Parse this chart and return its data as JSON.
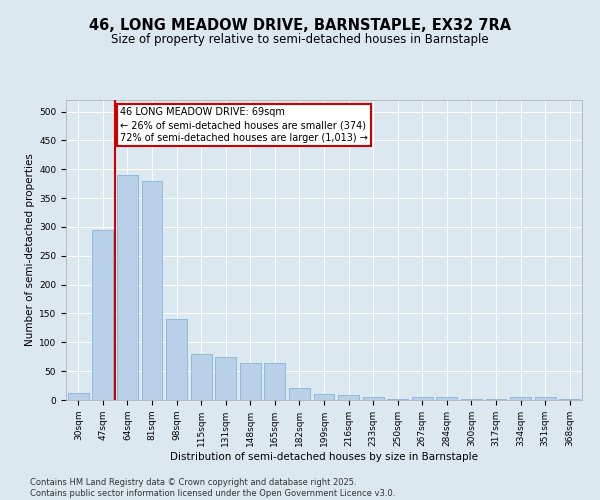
{
  "title1": "46, LONG MEADOW DRIVE, BARNSTAPLE, EX32 7RA",
  "title2": "Size of property relative to semi-detached houses in Barnstaple",
  "xlabel": "Distribution of semi-detached houses by size in Barnstaple",
  "ylabel": "Number of semi-detached properties",
  "categories": [
    "30sqm",
    "47sqm",
    "64sqm",
    "81sqm",
    "98sqm",
    "115sqm",
    "131sqm",
    "148sqm",
    "165sqm",
    "182sqm",
    "199sqm",
    "216sqm",
    "233sqm",
    "250sqm",
    "267sqm",
    "284sqm",
    "300sqm",
    "317sqm",
    "334sqm",
    "351sqm",
    "368sqm"
  ],
  "values": [
    12,
    295,
    390,
    380,
    140,
    80,
    75,
    65,
    65,
    20,
    10,
    9,
    5,
    2,
    6,
    6,
    2,
    1,
    5,
    5,
    2
  ],
  "bar_color": "#b8d0e8",
  "bar_edge_color": "#7aadd4",
  "vline_color": "#cc0000",
  "annotation_line1": "46 LONG MEADOW DRIVE: 69sqm",
  "annotation_line2": "← 26% of semi-detached houses are smaller (374)",
  "annotation_line3": "72% of semi-detached houses are larger (1,013) →",
  "annotation_box_facecolor": "#ffffff",
  "annotation_box_edgecolor": "#cc0000",
  "background_color": "#dce8f0",
  "plot_bg_color": "#dce8f0",
  "ylim": [
    0,
    520
  ],
  "yticks": [
    0,
    50,
    100,
    150,
    200,
    250,
    300,
    350,
    400,
    450,
    500
  ],
  "footer1": "Contains HM Land Registry data © Crown copyright and database right 2025.",
  "footer2": "Contains public sector information licensed under the Open Government Licence v3.0.",
  "title_fontsize": 10.5,
  "subtitle_fontsize": 8.5,
  "axis_label_fontsize": 7.5,
  "tick_fontsize": 6.5,
  "annotation_fontsize": 7,
  "footer_fontsize": 6
}
